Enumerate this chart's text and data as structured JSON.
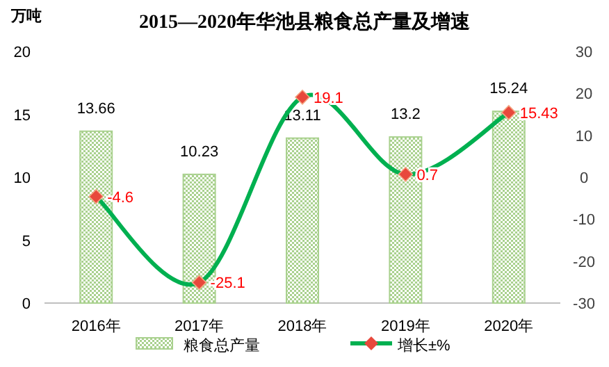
{
  "chart_data": {
    "type": "bar",
    "title": "2015—2020年华池县粮食总产量及增速",
    "ylabel": "万吨",
    "categories": [
      "2016年",
      "2017年",
      "2018年",
      "2019年",
      "2020年"
    ],
    "series": [
      {
        "name": "粮食总产量",
        "color": "#a9d18e",
        "values": [
          13.66,
          10.23,
          13.11,
          13.2,
          15.24
        ]
      },
      {
        "name": "增长±%",
        "type": "line",
        "axis": "y2",
        "color": "#00b050",
        "values": [
          -4.6,
          -25.1,
          19.1,
          0.7,
          15.43
        ]
      }
    ],
    "ylim": [
      0,
      20
    ],
    "yticks": [
      0,
      5,
      10,
      15,
      20
    ],
    "y2lim": [
      -30,
      30
    ],
    "y2ticks": [
      -30,
      -20,
      -10,
      0,
      10,
      20,
      30
    ],
    "marker": "diamond",
    "data_labels": true,
    "legend": "bottom",
    "grid": false
  }
}
